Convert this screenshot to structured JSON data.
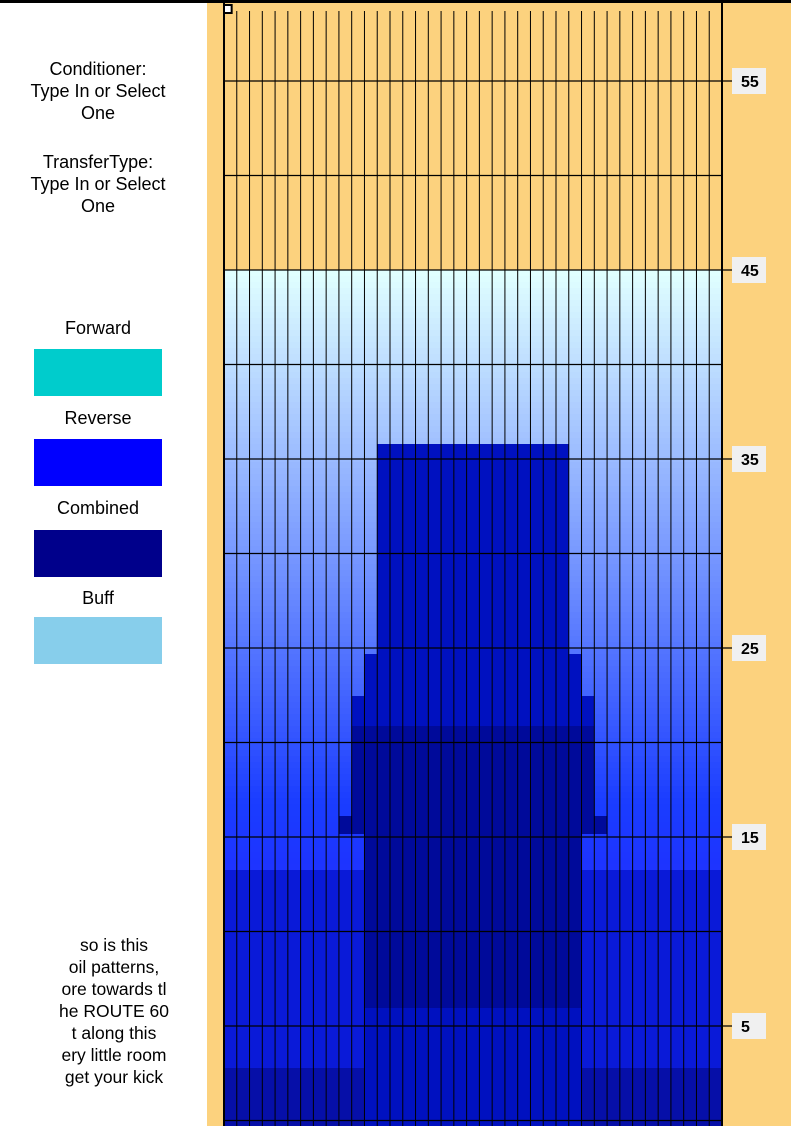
{
  "labels": {
    "conditioner": [
      "Conditioner:",
      "Type In or Select",
      "One"
    ],
    "transfer_type": [
      "TransferType:",
      "Type In or Select",
      "One"
    ]
  },
  "legend": {
    "items": [
      {
        "label": "Forward",
        "color": "#00cccc"
      },
      {
        "label": "Reverse",
        "color": "#0000ff"
      },
      {
        "label": "Combined",
        "color": "#00008b"
      },
      {
        "label": "Buff",
        "color": "#87ceeb"
      }
    ]
  },
  "description_lines": [
    "so is this",
    "oil patterns,",
    "ore towards tl",
    "he ROUTE 60",
    "t along this",
    "ery little room",
    "get your kick"
  ],
  "lane_graph": {
    "boards": 39,
    "distance_ticks": [
      "55",
      "45",
      "35",
      "25",
      "15",
      "5"
    ],
    "colors": {
      "gutter": "#fcd27e",
      "dry": "#fcd27e",
      "grid": "#000000",
      "tick_bg": "#f0f0f0",
      "tick_text": "#000000"
    }
  }
}
